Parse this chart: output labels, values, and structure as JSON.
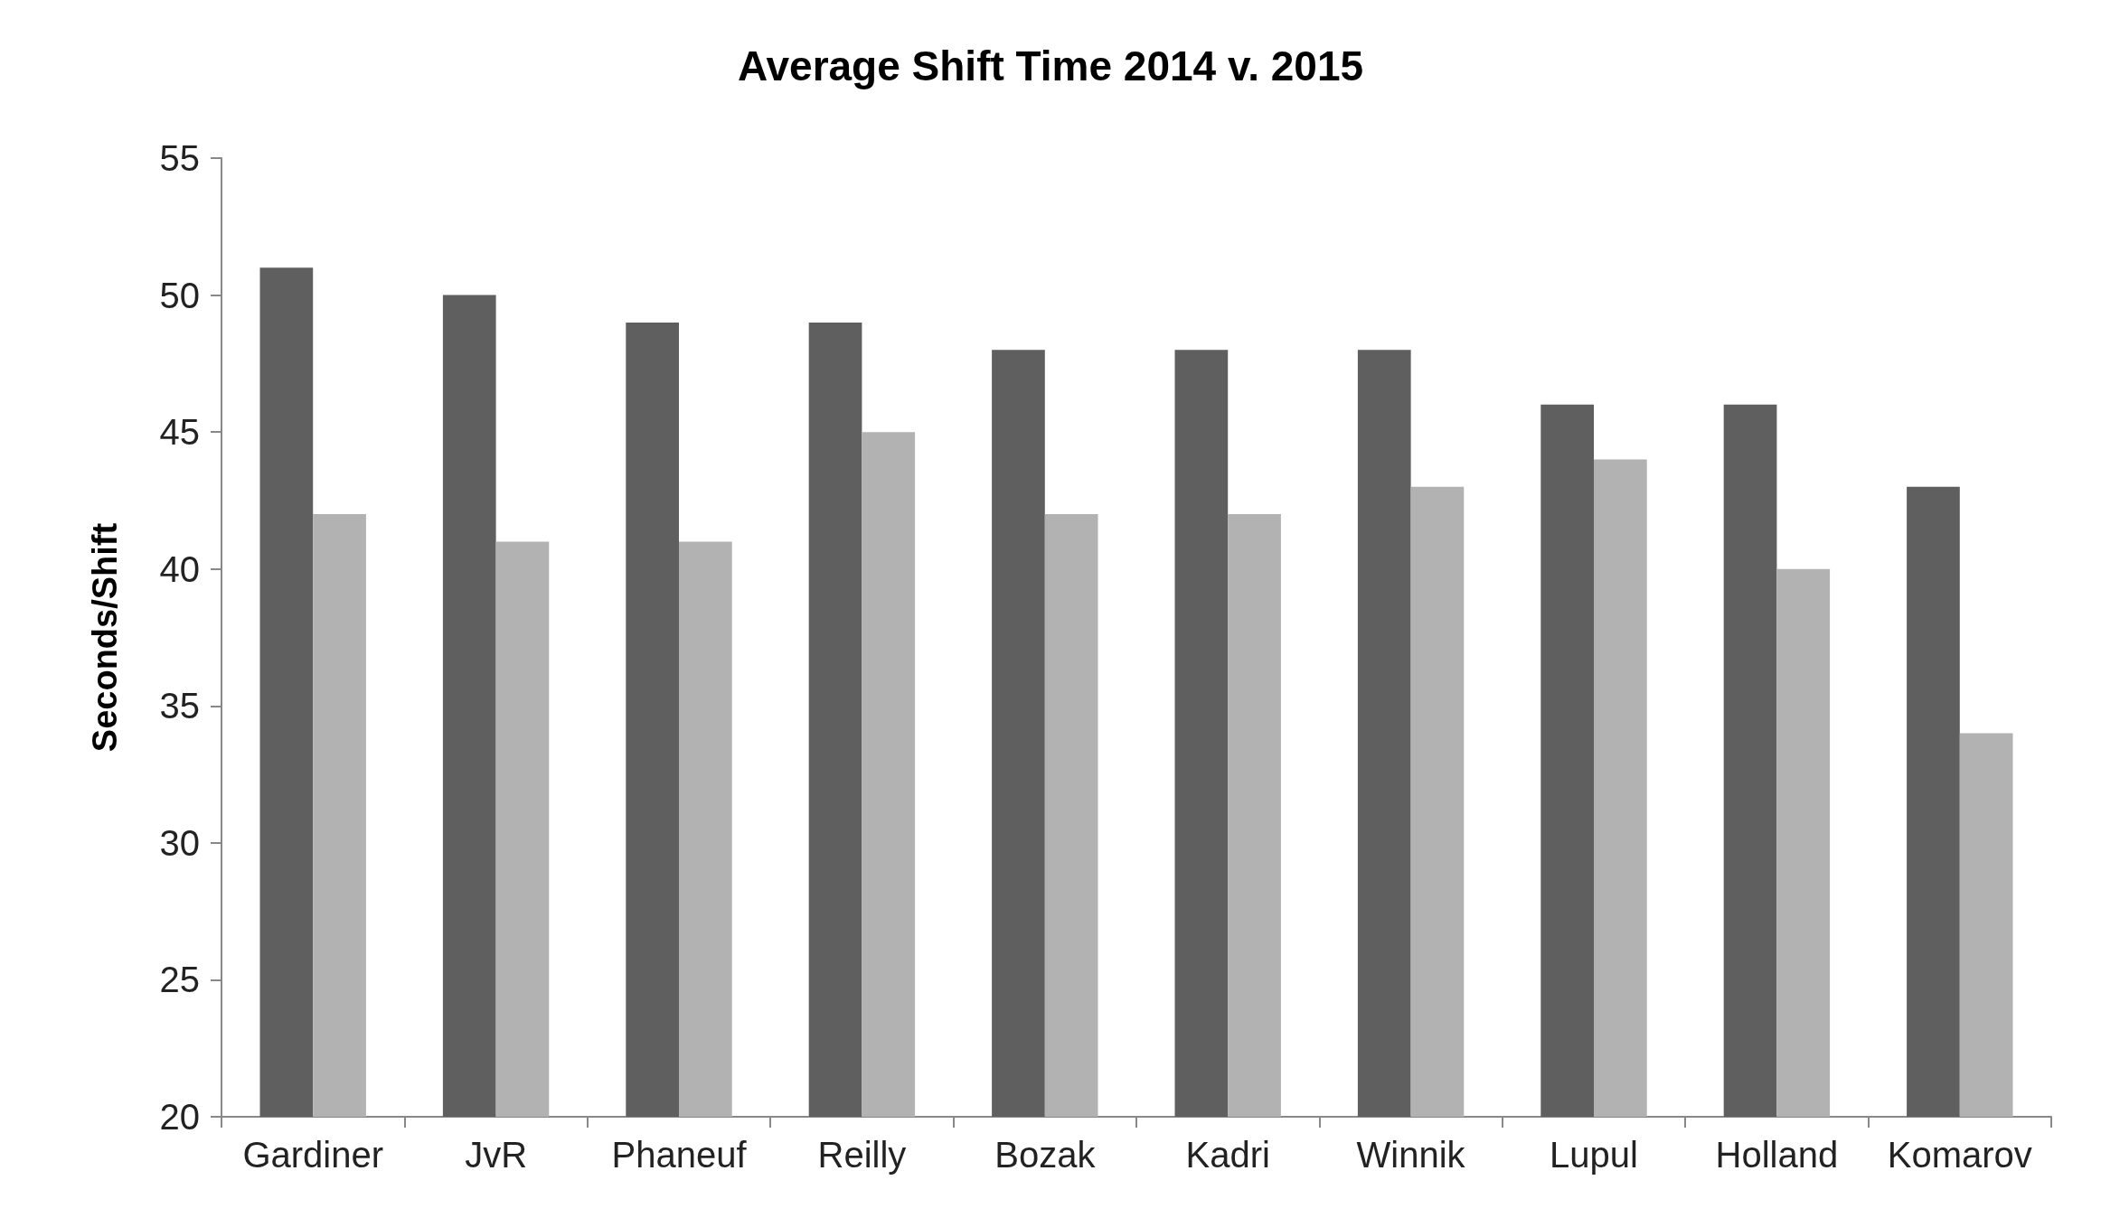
{
  "chart_data": {
    "type": "bar",
    "title": "Average Shift Time 2014 v. 2015",
    "ylabel": "Seconds/Shift",
    "categories": [
      "Gardiner",
      "JvR",
      "Phaneuf",
      "Reilly",
      "Bozak",
      "Kadri",
      "Winnik",
      "Lupul",
      "Holland",
      "Komarov"
    ],
    "series": [
      {
        "color": "#5f5f5f",
        "values": [
          51,
          50,
          49,
          49,
          48,
          48,
          48,
          46,
          46,
          43
        ]
      },
      {
        "color": "#b2b2b2",
        "values": [
          42,
          41,
          41,
          45,
          42,
          42,
          43,
          44,
          40,
          34
        ]
      }
    ],
    "ylim": [
      20,
      55
    ],
    "yticks": [
      20,
      25,
      30,
      35,
      40,
      45,
      50,
      55
    ],
    "grid": false
  }
}
